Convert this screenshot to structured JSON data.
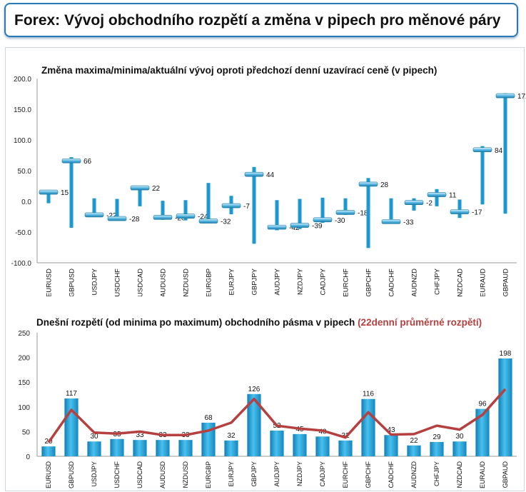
{
  "header": {
    "title": "Forex: Vývoj obchodního rozpětí a změna v pipech pro měnové páry"
  },
  "chart_data": [
    {
      "type": "range",
      "title": "Změna maxima/minima/aktuální vývoj oproti předchozí denní uzavírací ceně (v pipech)",
      "ylim": [
        -100,
        200
      ],
      "yticks": [
        "200.0",
        "150.0",
        "100.0",
        "50.0",
        "0.0",
        "-50.0",
        "-100.0"
      ],
      "categories": [
        "EURUSD",
        "GBPUSD",
        "USDJPY",
        "USDCHF",
        "USDCAD",
        "AUDUSD",
        "NZDUSD",
        "EURGBP",
        "EURJPY",
        "GBPJPY",
        "AUDJPY",
        "NZDJPY",
        "CADJPY",
        "EURCHF",
        "GBPCHF",
        "CADCHF",
        "AUDNZD",
        "CHFJPY",
        "NZDCAD",
        "EURAUD",
        "GBPAUD"
      ],
      "highs": [
        17,
        72,
        5,
        4,
        24,
        1,
        2,
        30,
        9,
        56,
        2,
        4,
        6,
        5,
        38,
        5,
        5,
        20,
        3,
        90,
        176
      ],
      "lows": [
        -3,
        -43,
        -25,
        -30,
        -8,
        -30,
        -31,
        -35,
        -21,
        -69,
        -47,
        -45,
        -35,
        -22,
        -76,
        -36,
        -15,
        -8,
        -27,
        -5,
        -20
      ],
      "current": [
        15,
        66,
        -22,
        -28,
        22,
        -26,
        -24,
        -32,
        -7,
        44,
        -42,
        -39,
        -30,
        -18,
        28,
        -33,
        -2,
        11,
        -17,
        84,
        172
      ],
      "labels": [
        "15",
        "66",
        "-22",
        "-28",
        "22",
        "-26",
        "-24",
        "-32",
        "-7",
        "44",
        "-42",
        "-39",
        "-30",
        "-18",
        "28",
        "-33",
        "-2",
        "11",
        "-17",
        "84",
        "172"
      ],
      "color": "#1b9ad2"
    },
    {
      "type": "bar+line",
      "title": "Dnešní rozpětí (od minima po maximum) obchodního pásma v pipech",
      "title_suffix": "(22denní průměrné rozpětí)",
      "ylim": [
        0,
        250
      ],
      "yticks": [
        "250",
        "200",
        "150",
        "100",
        "50",
        "0"
      ],
      "categories": [
        "EURUSD",
        "GBPUSD",
        "USDJPY",
        "USDCHF",
        "USDCAD",
        "AUDUSD",
        "NZDUSD",
        "EURGBP",
        "EURJPY",
        "GBPJPY",
        "AUDJPY",
        "NZDJPY",
        "CADJPY",
        "EURCHF",
        "GBPCHF",
        "CADCHF",
        "AUDNZD",
        "CHFJPY",
        "NZDCAD",
        "EURAUD",
        "GBPAUD"
      ],
      "values": [
        20,
        117,
        30,
        35,
        33,
        33,
        33,
        68,
        32,
        126,
        52,
        45,
        40,
        32,
        116,
        43,
        22,
        29,
        30,
        96,
        198
      ],
      "labels": [
        "20",
        "117",
        "30",
        "35",
        "33",
        "33",
        "33",
        "68",
        "32",
        "126",
        "52",
        "45",
        "40",
        "32",
        "116",
        "43",
        "22",
        "29",
        "30",
        "96",
        "198"
      ],
      "average": [
        28,
        94,
        48,
        46,
        50,
        43,
        43,
        52,
        68,
        116,
        62,
        56,
        52,
        38,
        89,
        44,
        45,
        62,
        54,
        84,
        136
      ],
      "bar_color": "#1b9ad2",
      "line_color": "#b5403f"
    }
  ]
}
